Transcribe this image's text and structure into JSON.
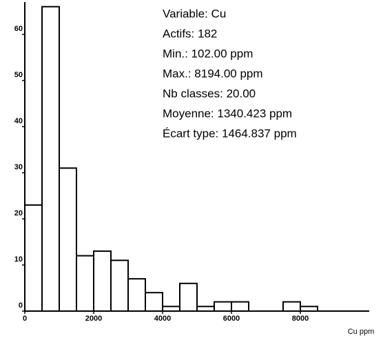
{
  "chart_data": {
    "type": "histogram",
    "bins": [
      0,
      500,
      1000,
      1500,
      2000,
      2500,
      3000,
      3500,
      4000,
      4500,
      5000,
      5500,
      6000,
      6500,
      7000,
      7500,
      8000,
      8500,
      9000,
      9500,
      10000
    ],
    "values": [
      23,
      66,
      31,
      12,
      13,
      11,
      7,
      4,
      1,
      6,
      1,
      2,
      2,
      0,
      0,
      2,
      1,
      0,
      0,
      0
    ],
    "color": "#ffffff",
    "xlabel": "Cu ppm",
    "xlim": [
      0,
      10000
    ],
    "xticks": [
      0,
      2000,
      4000,
      6000,
      8000
    ],
    "ylim": [
      0,
      67
    ],
    "yticks": [
      0,
      10,
      20,
      30,
      40,
      50,
      60
    ],
    "annotations": [
      "Variable: Cu",
      "Actifs: 182",
      "Min.: 102.00 ppm",
      "Max.: 8194.00 ppm",
      "Nb classes: 20.00",
      "Moyenne: 1340.423 ppm",
      "Écart type: 1464.837 ppm"
    ]
  }
}
